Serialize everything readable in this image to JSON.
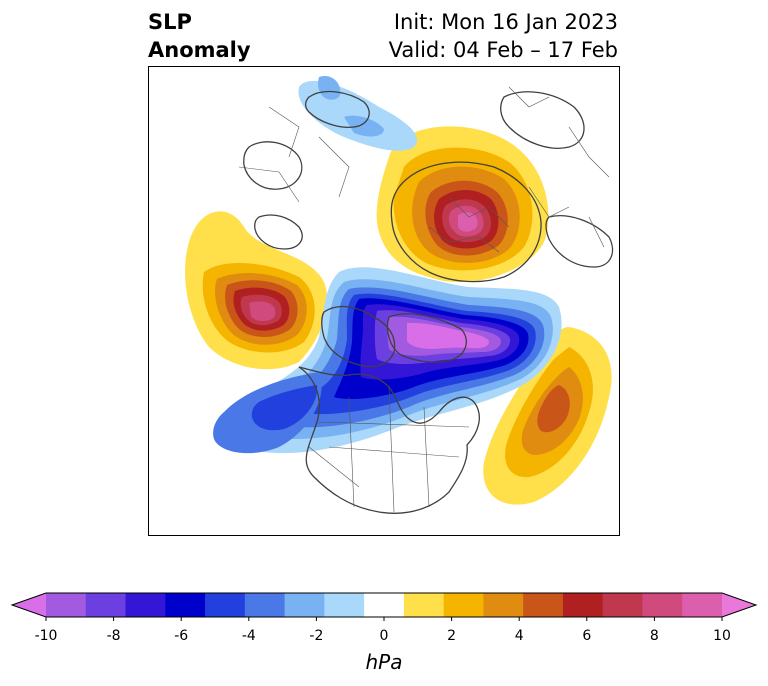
{
  "title": {
    "left_line1": "SLP",
    "left_line2": "Anomaly",
    "right_line1": "Init: Mon 16 Jan 2023",
    "right_line2": "Valid: 04 Feb – 17 Feb"
  },
  "colorbar": {
    "units": "hPa",
    "ticks": [
      "-10",
      "-8",
      "-6",
      "-4",
      "-2",
      "0",
      "2",
      "4",
      "6",
      "8",
      "10"
    ],
    "colors": [
      "#d86ee8",
      "#a25ae0",
      "#6b3fe0",
      "#3416d6",
      "#0000cc",
      "#2140dd",
      "#4a78e6",
      "#78b2f2",
      "#aad8fa",
      "#ffffff",
      "#ffe04a",
      "#f4b400",
      "#e08c10",
      "#c95518",
      "#b02020",
      "#c0384e",
      "#d04a7e",
      "#dc5fae",
      "#ea78da"
    ],
    "extend": "both"
  },
  "map": {
    "projection": "polar stereographic (North Pole)",
    "features": [
      "coastlines",
      "country borders",
      "state/province borders"
    ],
    "anomaly_centers": [
      {
        "region": "Northern Siberia",
        "sign": "positive",
        "approx_hpa": 10
      },
      {
        "region": "Northeast Pacific / Gulf of Alaska",
        "sign": "positive",
        "approx_hpa": 8
      },
      {
        "region": "Central North Atlantic",
        "sign": "positive",
        "approx_hpa": 5
      },
      {
        "region": "Greenland / Baffin Bay",
        "sign": "negative",
        "approx_hpa": -10
      },
      {
        "region": "Canadian Arctic Archipelago",
        "sign": "negative",
        "approx_hpa": -7
      },
      {
        "region": "Northern Europe",
        "sign": "negative",
        "approx_hpa": -2
      },
      {
        "region": "Eastern North Pacific",
        "sign": "negative",
        "approx_hpa": -5
      }
    ]
  }
}
